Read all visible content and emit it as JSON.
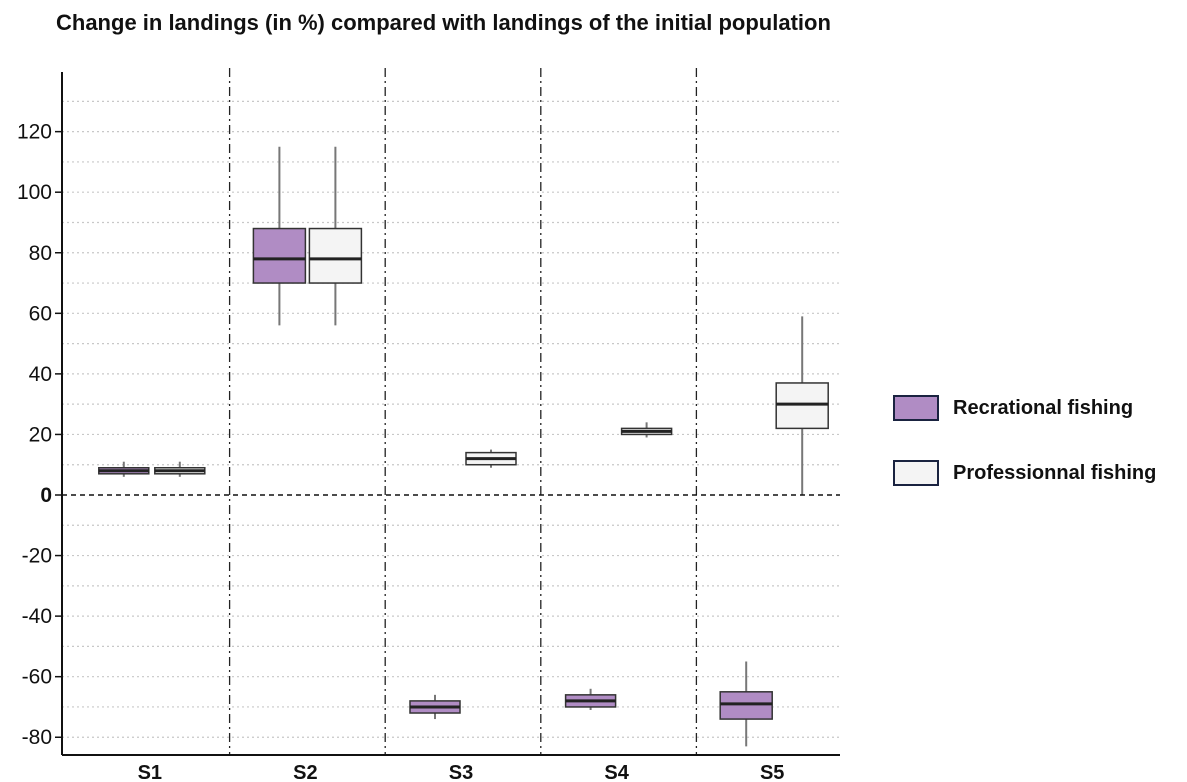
{
  "chart_data": {
    "type": "boxplot",
    "title": "Change in landings (in %) compared with landings of the initial population",
    "xlabel": "",
    "ylabel": "",
    "ylim": [
      -85,
      138
    ],
    "yticks": [
      -80,
      -60,
      -40,
      -20,
      0,
      20,
      40,
      60,
      80,
      100,
      120
    ],
    "grid": true,
    "legend_position": "right",
    "categories": [
      "S1",
      "S2",
      "S3",
      "S4",
      "S5"
    ],
    "series": [
      {
        "name": "Recrational fishing",
        "color": "#b08cc4",
        "boxes": [
          {
            "category": "S1",
            "min": 6,
            "q1": 7,
            "median": 8,
            "q3": 9,
            "max": 11
          },
          {
            "category": "S2",
            "min": 56,
            "q1": 70,
            "median": 78,
            "q3": 88,
            "max": 115
          },
          {
            "category": "S3",
            "min": -74,
            "q1": -72,
            "median": -70,
            "q3": -68,
            "max": -66
          },
          {
            "category": "S4",
            "min": -71,
            "q1": -70,
            "median": -68,
            "q3": -66,
            "max": -64
          },
          {
            "category": "S5",
            "min": -83,
            "q1": -74,
            "median": -69,
            "q3": -65,
            "max": -55
          }
        ]
      },
      {
        "name": "Professionnal fishing",
        "color": "#f4f4f4",
        "boxes": [
          {
            "category": "S1",
            "min": 6,
            "q1": 7,
            "median": 8,
            "q3": 9,
            "max": 11
          },
          {
            "category": "S2",
            "min": 56,
            "q1": 70,
            "median": 78,
            "q3": 88,
            "max": 115
          },
          {
            "category": "S3",
            "min": 9,
            "q1": 10,
            "median": 12,
            "q3": 14,
            "max": 15
          },
          {
            "category": "S4",
            "min": 19,
            "q1": 20,
            "median": 21,
            "q3": 22,
            "max": 24
          },
          {
            "category": "S5",
            "min": 0,
            "q1": 22,
            "median": 30,
            "q3": 37,
            "max": 59
          }
        ]
      }
    ]
  }
}
